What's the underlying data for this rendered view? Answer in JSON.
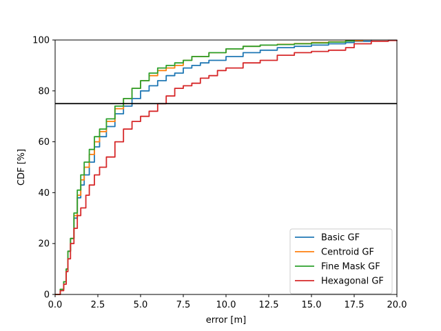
{
  "chart_data": {
    "type": "line",
    "title": "",
    "xlabel": "error [m]",
    "ylabel": "CDF [%]",
    "xlim": [
      0,
      20
    ],
    "ylim": [
      0,
      100
    ],
    "xticks": [
      "0.0",
      "2.5",
      "5.0",
      "7.5",
      "10.0",
      "12.5",
      "15.0",
      "17.5",
      "20.0"
    ],
    "yticks": [
      "0",
      "20",
      "40",
      "60",
      "80",
      "100"
    ],
    "grid": false,
    "legend_position": "lower-right",
    "reference_line": {
      "y": 75,
      "color": "#000000"
    },
    "series": [
      {
        "name": "Basic GF",
        "color": "#1f77b4",
        "x": [
          0,
          0.3,
          0.5,
          0.65,
          0.75,
          0.9,
          1.1,
          1.3,
          1.5,
          1.7,
          2.0,
          2.3,
          2.6,
          3.0,
          3.5,
          4.0,
          4.5,
          5.0,
          5.5,
          6.0,
          6.5,
          7.0,
          7.5,
          8.0,
          8.5,
          9.0,
          10.0,
          11.0,
          12.0,
          13.0,
          14.0,
          15.0,
          16.0,
          17.0,
          17.5,
          18.5
        ],
        "y": [
          0,
          2,
          5,
          10,
          17,
          22,
          30,
          38,
          43,
          47,
          52,
          58,
          62,
          66,
          71,
          74,
          77,
          80,
          82,
          84,
          86,
          87,
          89,
          90,
          91,
          92,
          93.5,
          95,
          96,
          97,
          97.5,
          98,
          98.5,
          99,
          99.5,
          100
        ]
      },
      {
        "name": "Centroid GF",
        "color": "#ff7f0e",
        "x": [
          0,
          0.3,
          0.5,
          0.65,
          0.75,
          0.9,
          1.1,
          1.3,
          1.5,
          1.7,
          2.0,
          2.3,
          2.6,
          3.0,
          3.5,
          4.0,
          4.5,
          5.0,
          5.5,
          6.0,
          6.5,
          7.0,
          7.5,
          8.0,
          9.0,
          10.0,
          11.0,
          12.0,
          13.0,
          14.0,
          15.0,
          16.0,
          17.0,
          18.0
        ],
        "y": [
          0,
          2,
          5,
          10,
          17,
          22,
          31,
          39,
          45,
          50,
          55,
          60,
          64,
          68,
          73,
          77,
          81,
          84,
          86,
          88,
          89,
          90,
          92,
          93.5,
          95,
          96.5,
          97.5,
          98,
          98.3,
          98.6,
          99,
          99.3,
          99.7,
          100
        ]
      },
      {
        "name": "Fine Mask GF",
        "color": "#2ca02c",
        "x": [
          0,
          0.3,
          0.5,
          0.65,
          0.75,
          0.9,
          1.1,
          1.3,
          1.5,
          1.7,
          2.0,
          2.3,
          2.6,
          3.0,
          3.5,
          4.0,
          4.5,
          5.0,
          5.5,
          6.0,
          6.5,
          7.0,
          7.5,
          8.0,
          9.0,
          10.0,
          11.0,
          12.0,
          13.0,
          14.0,
          15.0,
          16.0,
          17.0,
          17.5
        ],
        "y": [
          0,
          2,
          5,
          10,
          17,
          22,
          32,
          41,
          47,
          52,
          57,
          62,
          65,
          69,
          74,
          77,
          81,
          84,
          87,
          89,
          90,
          91,
          92,
          93.5,
          95,
          96.5,
          97.5,
          98,
          98.2,
          98.5,
          98.8,
          99.2,
          99.6,
          100
        ]
      },
      {
        "name": "Hexagonal GF",
        "color": "#d62728",
        "x": [
          0,
          0.3,
          0.5,
          0.65,
          0.75,
          0.9,
          1.1,
          1.3,
          1.5,
          1.8,
          2.0,
          2.3,
          2.6,
          3.0,
          3.5,
          4.0,
          4.5,
          5.0,
          5.5,
          6.0,
          6.5,
          7.0,
          7.5,
          8.0,
          8.5,
          9.0,
          9.5,
          10.0,
          11.0,
          12.0,
          13.0,
          14.0,
          15.0,
          16.0,
          17.0,
          17.5,
          18.5,
          19.5,
          20.0
        ],
        "y": [
          0,
          1.5,
          4,
          9,
          14,
          20,
          26,
          31,
          34,
          39,
          43,
          47,
          50,
          54,
          60,
          65,
          68,
          70,
          72,
          75,
          78,
          81,
          82,
          83,
          85,
          86,
          88,
          89,
          91,
          92,
          94,
          95,
          95.5,
          96,
          97,
          98.5,
          99.5,
          99.8,
          100
        ]
      }
    ]
  }
}
